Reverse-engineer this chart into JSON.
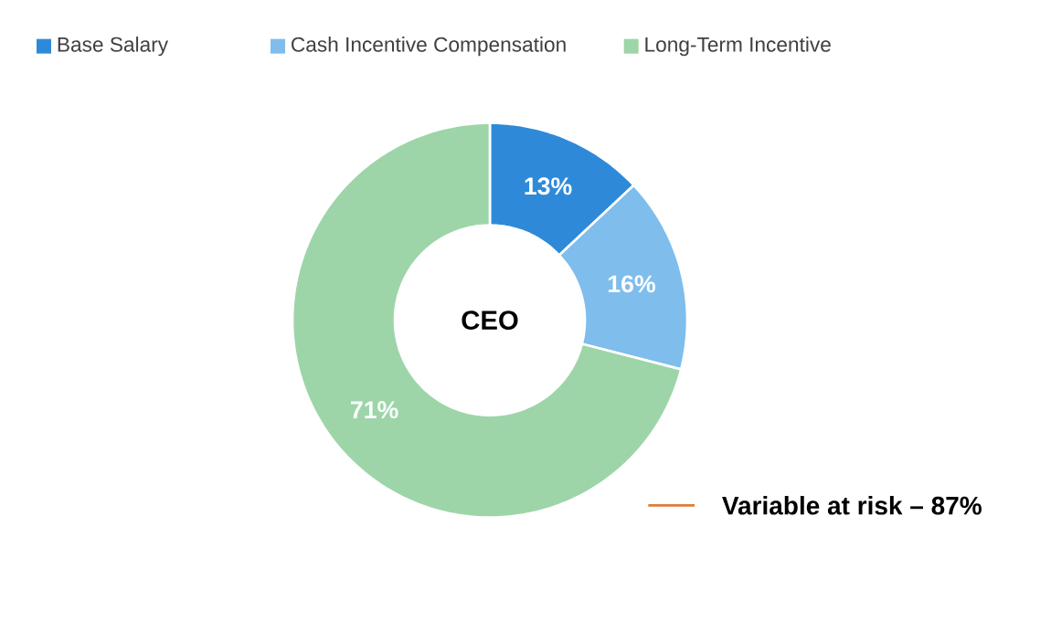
{
  "chart_data": {
    "type": "donut",
    "categories": [
      "Base Salary",
      "Cash Incentive Compensation",
      "Long-Term Incentive"
    ],
    "values": [
      13,
      16,
      71
    ],
    "colors": [
      "#2e8ad8",
      "#7fbdec",
      "#9dd5a8"
    ],
    "value_labels": [
      "13%",
      "16%",
      "71%"
    ],
    "legend": "top",
    "annotations": [
      "CEO",
      "Variable at risk – 87%"
    ]
  }
}
